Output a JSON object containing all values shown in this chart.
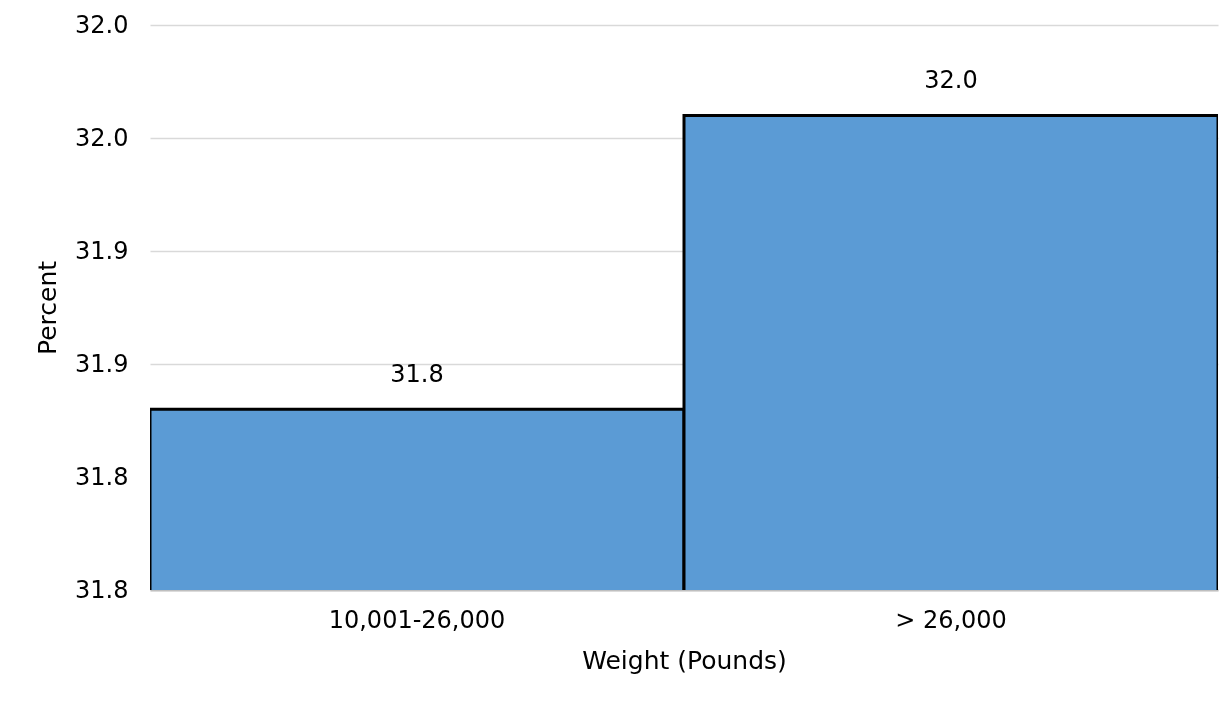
{
  "chart_data": {
    "type": "bar",
    "xlabel": "Weight (Pounds)",
    "ylabel": "Percent",
    "categories": [
      "10,001-26,000",
      "> 26,000"
    ],
    "values": [
      31.83,
      31.96
    ],
    "value_labels": [
      "31.8",
      "32.0"
    ],
    "color": "#5b9bd5",
    "ylim": [
      31.75,
      32.0
    ],
    "yticks": [
      {
        "value": 31.75,
        "label": "31.8"
      },
      {
        "value": 31.8,
        "label": "31.8"
      },
      {
        "value": 31.85,
        "label": "31.9"
      },
      {
        "value": 31.9,
        "label": "31.9"
      },
      {
        "value": 31.95,
        "label": "32.0"
      },
      {
        "value": 32.0,
        "label": "32.0"
      }
    ],
    "grid": "y"
  }
}
